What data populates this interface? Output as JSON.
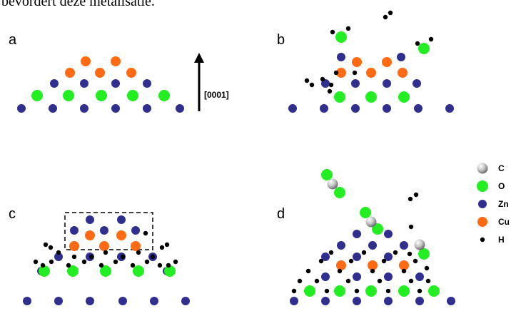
{
  "caption_text": "bevordert deze metalisatie.",
  "direction_label": "[0001]",
  "colors": {
    "zn": "#2f2f8f",
    "o": "#22ee22",
    "cu": "#ff6a13",
    "h": "#000000",
    "c_light": "#f2f2f2",
    "c_dark": "#6e6e6e"
  },
  "panels": [
    {
      "letter": "a",
      "atoms": [
        [
          "cu",
          120,
          86
        ],
        [
          "cu",
          162,
          86
        ],
        [
          "cu",
          98,
          102
        ],
        [
          "cu",
          140,
          102
        ],
        [
          "cu",
          184,
          102
        ],
        [
          "zn",
          76,
          117
        ],
        [
          "zn",
          118,
          117
        ],
        [
          "zn",
          162,
          117
        ],
        [
          "zn",
          206,
          117
        ],
        [
          "o",
          52,
          134
        ],
        [
          "o",
          96,
          134
        ],
        [
          "o",
          142,
          134
        ],
        [
          "o",
          186,
          134
        ],
        [
          "o",
          230,
          134
        ],
        [
          "zn",
          30,
          152
        ],
        [
          "zn",
          74,
          152
        ],
        [
          "zn",
          118,
          152
        ],
        [
          "zn",
          162,
          152
        ],
        [
          "zn",
          206,
          152
        ],
        [
          "zn",
          252,
          152
        ]
      ]
    },
    {
      "letter": "b",
      "atoms": [
        [
          "h",
          540,
          24
        ],
        [
          "h",
          547,
          18
        ],
        [
          "h",
          466,
          45
        ],
        [
          "h",
          488,
          40
        ],
        [
          "o",
          478,
          52
        ],
        [
          "h",
          585,
          61
        ],
        [
          "h",
          604,
          55
        ],
        [
          "o",
          594,
          68
        ],
        [
          "zn",
          478,
          80
        ],
        [
          "zn",
          562,
          80
        ],
        [
          "cu",
          500,
          87
        ],
        [
          "cu",
          542,
          87
        ],
        [
          "h",
          471,
          102
        ],
        [
          "h",
          497,
          102
        ],
        [
          "cu",
          478,
          102
        ],
        [
          "cu",
          520,
          102
        ],
        [
          "cu",
          564,
          102
        ],
        [
          "h",
          430,
          113
        ],
        [
          "h",
          437,
          119
        ],
        [
          "h",
          452,
          111
        ],
        [
          "h",
          464,
          119
        ],
        [
          "zn",
          456,
          117
        ],
        [
          "zn",
          498,
          117
        ],
        [
          "zn",
          542,
          117
        ],
        [
          "zn",
          584,
          117
        ],
        [
          "h",
          462,
          128
        ],
        [
          "o",
          476,
          136
        ],
        [
          "o",
          520,
          136
        ],
        [
          "o",
          566,
          136
        ],
        [
          "zn",
          410,
          152
        ],
        [
          "zn",
          454,
          152
        ],
        [
          "zn",
          498,
          152
        ],
        [
          "zn",
          542,
          152
        ],
        [
          "zn",
          586,
          152
        ],
        [
          "zn",
          630,
          152
        ]
      ]
    },
    {
      "letter": "c",
      "box": true,
      "atoms": [
        [
          "zn",
          126,
          308
        ],
        [
          "zn",
          170,
          308
        ],
        [
          "zn",
          104,
          323
        ],
        [
          "zn",
          146,
          323
        ],
        [
          "zn",
          190,
          323
        ],
        [
          "h",
          204,
          327
        ],
        [
          "cu",
          126,
          330
        ],
        [
          "cu",
          170,
          330
        ],
        [
          "h",
          64,
          343
        ],
        [
          "h",
          71,
          347
        ],
        [
          "h",
          234,
          343
        ],
        [
          "h",
          227,
          347
        ],
        [
          "cu",
          104,
          345
        ],
        [
          "cu",
          146,
          345
        ],
        [
          "cu",
          190,
          345
        ],
        [
          "h",
          82,
          354
        ],
        [
          "h",
          104,
          360
        ],
        [
          "h",
          128,
          360
        ],
        [
          "h",
          148,
          354
        ],
        [
          "h",
          172,
          360
        ],
        [
          "h",
          194,
          354
        ],
        [
          "h",
          214,
          360
        ],
        [
          "zn",
          82,
          360
        ],
        [
          "zn",
          126,
          360
        ],
        [
          "zn",
          170,
          360
        ],
        [
          "zn",
          214,
          360
        ],
        [
          "h",
          50,
          367
        ],
        [
          "h",
          60,
          372
        ],
        [
          "h",
          72,
          367
        ],
        [
          "h",
          96,
          372
        ],
        [
          "h",
          118,
          367
        ],
        [
          "h",
          142,
          372
        ],
        [
          "h",
          162,
          367
        ],
        [
          "h",
          186,
          372
        ],
        [
          "h",
          206,
          367
        ],
        [
          "h",
          224,
          372
        ],
        [
          "h",
          246,
          367
        ],
        [
          "h",
          236,
          372
        ],
        [
          "zn",
          58,
          380
        ],
        [
          "zn",
          102,
          380
        ],
        [
          "zn",
          148,
          380
        ],
        [
          "zn",
          192,
          380
        ],
        [
          "zn",
          234,
          380
        ],
        [
          "o",
          62,
          380
        ],
        [
          "o",
          102,
          380
        ],
        [
          "o",
          148,
          380
        ],
        [
          "o",
          194,
          380
        ],
        [
          "o",
          238,
          380
        ],
        [
          "zn",
          38,
          422
        ],
        [
          "zn",
          82,
          422
        ],
        [
          "zn",
          126,
          422
        ],
        [
          "zn",
          172,
          422
        ],
        [
          "zn",
          216,
          422
        ],
        [
          "zn",
          260,
          422
        ]
      ]
    },
    {
      "letter": "d",
      "atoms": [
        [
          "o",
          458,
          245
        ],
        [
          "c",
          466,
          258
        ],
        [
          "o",
          476,
          270
        ],
        [
          "h",
          575,
          279
        ],
        [
          "h",
          583,
          273
        ],
        [
          "o",
          512,
          298
        ],
        [
          "c",
          520,
          311
        ],
        [
          "o",
          529,
          321
        ],
        [
          "zn",
          500,
          328
        ],
        [
          "zn",
          544,
          328
        ],
        [
          "h",
          576,
          318
        ],
        [
          "c",
          588,
          343
        ],
        [
          "o",
          594,
          356
        ],
        [
          "zn",
          478,
          344
        ],
        [
          "zn",
          522,
          344
        ],
        [
          "zn",
          566,
          344
        ],
        [
          "h",
          464,
          354
        ],
        [
          "h",
          510,
          354
        ],
        [
          "h",
          554,
          354
        ],
        [
          "h",
          574,
          356
        ],
        [
          "zn",
          456,
          360
        ],
        [
          "zn",
          500,
          360
        ],
        [
          "zn",
          544,
          360
        ],
        [
          "h",
          450,
          366
        ],
        [
          "h",
          492,
          366
        ],
        [
          "h",
          538,
          366
        ],
        [
          "h",
          582,
          366
        ],
        [
          "cu",
          478,
          372
        ],
        [
          "cu",
          522,
          372
        ],
        [
          "cu",
          566,
          372
        ],
        [
          "h",
          432,
          380
        ],
        [
          "h",
          476,
          380
        ],
        [
          "h",
          522,
          380
        ],
        [
          "h",
          566,
          380
        ],
        [
          "h",
          598,
          376
        ],
        [
          "zn",
          456,
          388
        ],
        [
          "zn",
          500,
          388
        ],
        [
          "zn",
          544,
          388
        ],
        [
          "zn",
          588,
          388
        ],
        [
          "h",
          420,
          394
        ],
        [
          "h",
          444,
          394
        ],
        [
          "h",
          488,
          394
        ],
        [
          "h",
          532,
          394
        ],
        [
          "h",
          576,
          394
        ],
        [
          "h",
          600,
          394
        ],
        [
          "o",
          434,
          408
        ],
        [
          "o",
          476,
          408
        ],
        [
          "o",
          520,
          408
        ],
        [
          "o",
          566,
          408
        ],
        [
          "o",
          608,
          408
        ],
        [
          "h",
          412,
          408
        ],
        [
          "h",
          458,
          408
        ],
        [
          "h",
          500,
          408
        ],
        [
          "h",
          544,
          408
        ],
        [
          "h",
          588,
          408
        ],
        [
          "zn",
          412,
          422
        ],
        [
          "zn",
          456,
          422
        ],
        [
          "zn",
          500,
          422
        ],
        [
          "zn",
          544,
          422
        ],
        [
          "zn",
          588,
          422
        ],
        [
          "zn",
          632,
          422
        ]
      ]
    }
  ],
  "legend": [
    {
      "element": "c",
      "label": "C"
    },
    {
      "element": "o",
      "label": "O"
    },
    {
      "element": "zn",
      "label": "Zn"
    },
    {
      "element": "cu",
      "label": "Cu"
    },
    {
      "element": "h",
      "label": "H"
    }
  ]
}
